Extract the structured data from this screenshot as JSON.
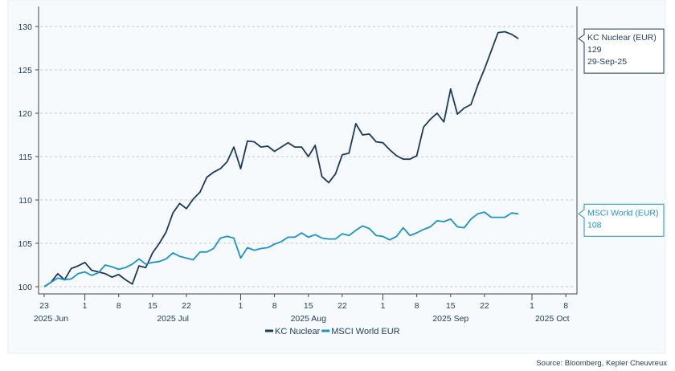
{
  "chart_data": {
    "type": "line",
    "title": "",
    "xlabel": "",
    "ylabel": "",
    "ylim": [
      100,
      130
    ],
    "yticks": [
      100,
      105,
      110,
      115,
      120,
      125,
      130
    ],
    "grid": "horizontal dashed",
    "legend_position": "bottom-center",
    "x_tick_labels": [
      {
        "date": "2025-06-23",
        "label": "23"
      },
      {
        "date": "2025-07-01",
        "label": "1"
      },
      {
        "date": "2025-07-08",
        "label": "8"
      },
      {
        "date": "2025-07-15",
        "label": "15"
      },
      {
        "date": "2025-07-22",
        "label": "22"
      },
      {
        "date": "2025-08-01",
        "label": "1"
      },
      {
        "date": "2025-08-08",
        "label": "8"
      },
      {
        "date": "2025-08-15",
        "label": "15"
      },
      {
        "date": "2025-08-22",
        "label": "22"
      },
      {
        "date": "2025-09-01",
        "label": "1"
      },
      {
        "date": "2025-09-08",
        "label": "8"
      },
      {
        "date": "2025-09-15",
        "label": "15"
      },
      {
        "date": "2025-09-22",
        "label": "22"
      },
      {
        "date": "2025-10-01",
        "label": "1"
      },
      {
        "date": "2025-10-08",
        "label": "8"
      }
    ],
    "month_labels": [
      {
        "date": "2025-06-24",
        "label": "2025 Jun"
      },
      {
        "date": "2025-07-18",
        "label": "2025 Jul"
      },
      {
        "date": "2025-08-15",
        "label": "2025 Aug"
      },
      {
        "date": "2025-09-15",
        "label": "2025 Sep"
      },
      {
        "date": "2025-10-06",
        "label": "2025 Oct"
      }
    ],
    "x": [
      "2025-06-23",
      "2025-06-24",
      "2025-06-25",
      "2025-06-26",
      "2025-06-27",
      "2025-06-30",
      "2025-07-01",
      "2025-07-02",
      "2025-07-03",
      "2025-07-04",
      "2025-07-07",
      "2025-07-08",
      "2025-07-09",
      "2025-07-10",
      "2025-07-11",
      "2025-07-14",
      "2025-07-15",
      "2025-07-16",
      "2025-07-17",
      "2025-07-18",
      "2025-07-21",
      "2025-07-22",
      "2025-07-23",
      "2025-07-24",
      "2025-07-25",
      "2025-07-28",
      "2025-07-29",
      "2025-07-30",
      "2025-07-31",
      "2025-08-01",
      "2025-08-04",
      "2025-08-05",
      "2025-08-06",
      "2025-08-07",
      "2025-08-08",
      "2025-08-11",
      "2025-08-12",
      "2025-08-13",
      "2025-08-14",
      "2025-08-15",
      "2025-08-18",
      "2025-08-19",
      "2025-08-20",
      "2025-08-21",
      "2025-08-22",
      "2025-08-25",
      "2025-08-26",
      "2025-08-27",
      "2025-08-28",
      "2025-08-29",
      "2025-09-01",
      "2025-09-02",
      "2025-09-03",
      "2025-09-04",
      "2025-09-05",
      "2025-09-08",
      "2025-09-09",
      "2025-09-10",
      "2025-09-11",
      "2025-09-12",
      "2025-09-15",
      "2025-09-16",
      "2025-09-17",
      "2025-09-18",
      "2025-09-19",
      "2025-09-22",
      "2025-09-23",
      "2025-09-24",
      "2025-09-25",
      "2025-09-26",
      "2025-09-29"
    ],
    "series": [
      {
        "name": "KC Nuclear",
        "color": "#1b3a5e",
        "values": [
          100,
          100.5,
          101.5,
          100.8,
          102.1,
          102.4,
          102.8,
          101.9,
          101.7,
          101.5,
          101.1,
          101.4,
          100.8,
          100.3,
          102.4,
          102.2,
          103.9,
          105,
          106.3,
          108.5,
          109.6,
          109,
          110.1,
          110.9,
          112.6,
          113.2,
          113.6,
          114.4,
          116.1,
          113.6,
          116.8,
          116.7,
          116.1,
          116.2,
          115.6,
          116.1,
          116.6,
          116.1,
          116.1,
          115.0,
          116.3,
          112.7,
          112.0,
          113.0,
          115.2,
          115.4,
          118.8,
          117.5,
          117.6,
          116.7,
          116.6,
          115.8,
          115.1,
          114.7,
          114.7,
          115.1,
          118.4,
          119.3,
          120.0,
          119.0,
          122.8,
          119.9,
          120.6,
          121.0,
          123.2,
          125.1,
          127.2,
          129.3,
          129.4,
          129.1,
          128.6
        ]
      },
      {
        "name": "MSCI World EUR",
        "color": "#1a94c8",
        "values": [
          100,
          100.5,
          101.0,
          100.8,
          100.9,
          101.5,
          101.7,
          101.3,
          101.6,
          102.5,
          102.3,
          102.0,
          102.2,
          102.6,
          103.2,
          102.6,
          102.8,
          102.9,
          103.2,
          103.9,
          103.5,
          103.3,
          103.1,
          104.0,
          104.0,
          104.4,
          105.6,
          105.8,
          105.6,
          103.3,
          104.5,
          104.2,
          104.4,
          104.5,
          104.9,
          105.2,
          105.7,
          105.7,
          106.2,
          105.7,
          106.0,
          105.6,
          105.5,
          105.5,
          106.1,
          105.9,
          106.5,
          107.0,
          106.7,
          105.9,
          105.8,
          105.4,
          105.8,
          106.8,
          105.9,
          106.2,
          106.6,
          106.9,
          107.6,
          107.5,
          107.8,
          106.9,
          106.8,
          107.8,
          108.4,
          108.6,
          108.0,
          108.0,
          108.0,
          108.5,
          108.4
        ]
      }
    ],
    "callouts": [
      {
        "series": "KC Nuclear",
        "title": "KC Nuclear (EUR)",
        "value": "129",
        "date": "29-Sep-25",
        "color": "#1b3a5e"
      },
      {
        "series": "MSCI World EUR",
        "title": "MSCI World (EUR)",
        "value": "108",
        "color": "#1a94c8"
      }
    ]
  },
  "source": "Source: Bloomberg, Kepler Cheuvreux"
}
